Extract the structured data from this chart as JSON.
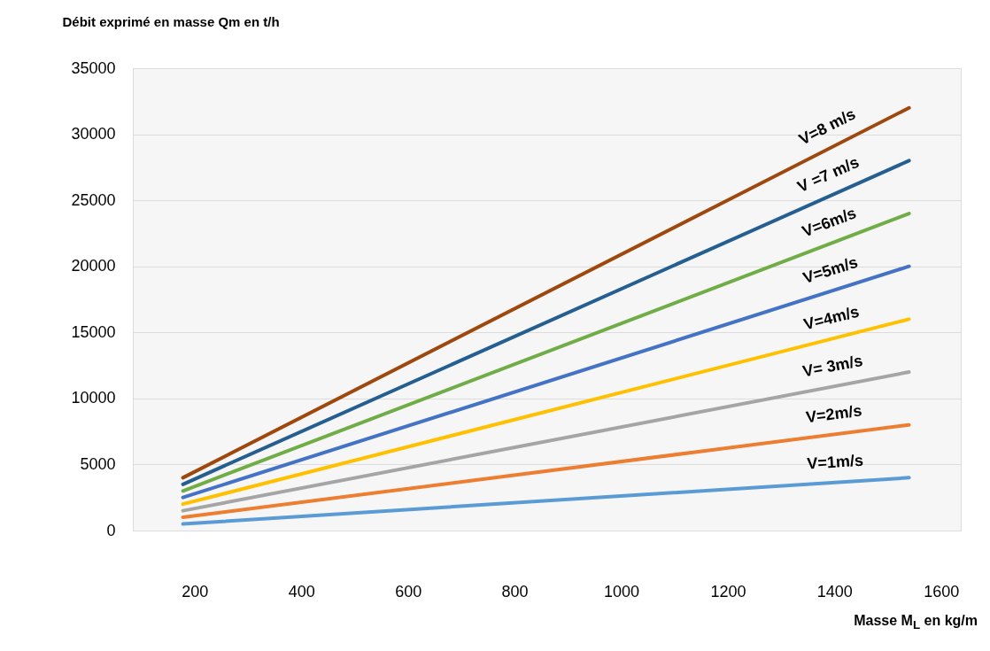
{
  "chart_data": {
    "type": "line",
    "ylabel": "Débit exprimé en masse Qm en t/h",
    "xlabel": "Masse M$_{L}$ en kg/m",
    "xlim": [
      84,
      1637
    ],
    "xticks": [
      200,
      400,
      600,
      800,
      1000,
      1200,
      1400,
      1600
    ],
    "ylim": [
      0,
      35000
    ],
    "yticks": [
      0,
      5000,
      10000,
      15000,
      20000,
      25000,
      30000,
      35000
    ],
    "grid": "y",
    "line_style": "solid",
    "x": [
      178,
      1540
    ],
    "series": [
      {
        "name": "V=1m/s",
        "color": "#5b9bd5",
        "values": [
          500,
          4000
        ]
      },
      {
        "name": "V=2m/s",
        "color": "#ed7d31",
        "values": [
          1000,
          8000
        ]
      },
      {
        "name": "V= 3m/s",
        "color": "#a5a5a5",
        "values": [
          1500,
          12000
        ]
      },
      {
        "name": "V=4m/s",
        "color": "#ffc000",
        "values": [
          2000,
          16000
        ]
      },
      {
        "name": "V=5m/s",
        "color": "#4472c4",
        "values": [
          2500,
          20000
        ]
      },
      {
        "name": "V=6m/s",
        "color": "#70ad47",
        "values": [
          3000,
          24000
        ]
      },
      {
        "name": "V =7 m/s",
        "color": "#255e91",
        "values": [
          3500,
          28000
        ]
      },
      {
        "name": "V=8 m/s",
        "color": "#9e480e",
        "values": [
          4000,
          32000
        ]
      }
    ]
  }
}
